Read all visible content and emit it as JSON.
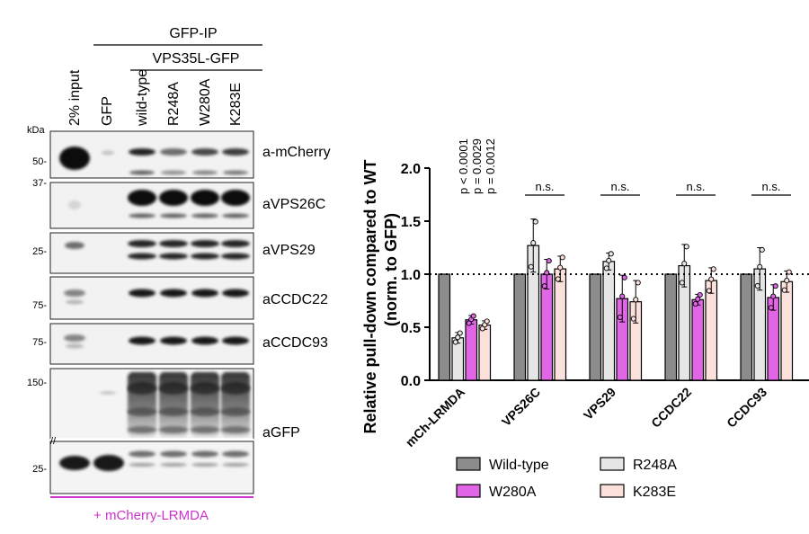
{
  "blot": {
    "lane_labels": [
      "2% input",
      "GFP",
      "wild-type",
      "R248A",
      "W280A",
      "K283E"
    ],
    "ip_label": "GFP-IP",
    "construct_label": "VPS35L-GFP",
    "kda_label": "kDa",
    "markers": [
      "50-",
      "37-",
      "25-",
      "75-",
      "75-",
      "150-",
      "25-"
    ],
    "antibodies": [
      "a-mCherry",
      "aVPS26C",
      "aVPS29",
      "aCCDC22",
      "aCCDC93",
      "aGFP"
    ],
    "footer": "+ mCherry-LRMDA",
    "footer_color": "#cc33cc"
  },
  "chart_data": {
    "type": "bar",
    "ylabel": "Relative pull-down compared to WT",
    "ylabel2": "(norm. to GFP)",
    "ylim": [
      0,
      2.0
    ],
    "yticks": [
      "0.0",
      "0.5",
      "1.0",
      "1.5",
      "2.0"
    ],
    "reference_line": 1.0,
    "categories": [
      "mCh-LRMDA",
      "VPS26C",
      "VPS29",
      "CCDC22",
      "CCDC93"
    ],
    "series": [
      {
        "name": "Wild-type",
        "color": "#8c8c8c",
        "values": [
          1.0,
          1.0,
          1.0,
          1.0,
          1.0
        ],
        "errors": [
          0,
          0,
          0,
          0,
          0
        ]
      },
      {
        "name": "R248A",
        "color": "#e6e6e6",
        "values": [
          0.4,
          1.27,
          1.12,
          1.08,
          1.05
        ],
        "errors": [
          0.05,
          0.25,
          0.08,
          0.2,
          0.2
        ]
      },
      {
        "name": "W280A",
        "color": "#e066e6",
        "values": [
          0.57,
          1.0,
          0.77,
          0.76,
          0.78
        ],
        "errors": [
          0.04,
          0.14,
          0.22,
          0.05,
          0.12
        ]
      },
      {
        "name": "K283E",
        "color": "#fbe0dc",
        "values": [
          0.52,
          1.05,
          0.74,
          0.94,
          0.93
        ],
        "errors": [
          0.04,
          0.12,
          0.2,
          0.12,
          0.1
        ]
      }
    ],
    "pvalues": [
      "p < 0.0001",
      "p = 0.0029",
      "p = 0.0012"
    ],
    "significance": [
      "n.s.",
      "n.s.",
      "n.s.",
      "n.s."
    ],
    "legend_position": "bottom"
  }
}
